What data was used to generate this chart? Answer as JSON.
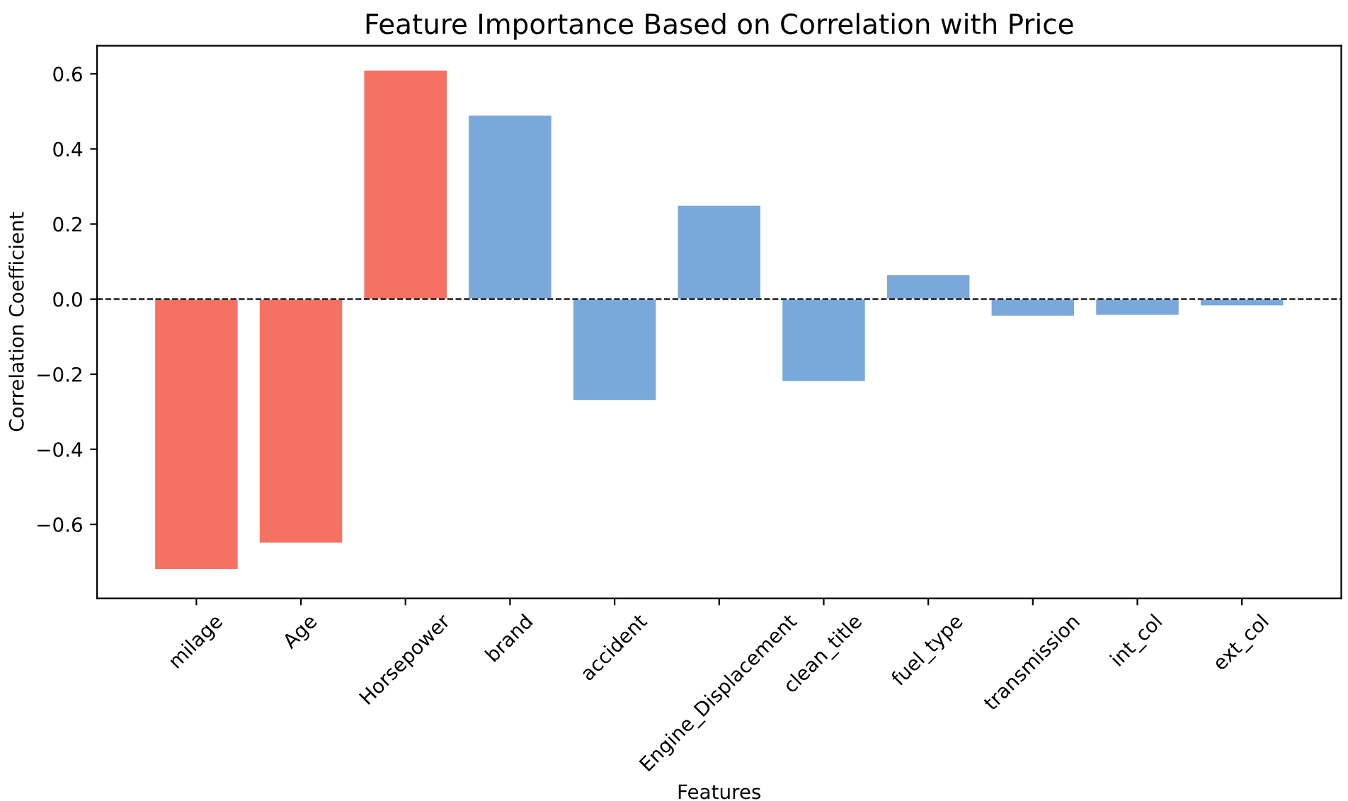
{
  "chart_data": {
    "type": "bar",
    "title": "Feature Importance Based on Correlation with Price",
    "xlabel": "Features",
    "ylabel": "Correlation Coefficient",
    "categories": [
      "milage",
      "Age",
      "Horsepower",
      "brand",
      "accident",
      "Engine_Displacement",
      "clean_title",
      "fuel_type",
      "transmission",
      "int_col",
      "ext_col"
    ],
    "values": [
      -0.72,
      -0.65,
      0.61,
      0.49,
      -0.27,
      0.25,
      -0.22,
      0.065,
      -0.046,
      -0.043,
      -0.018
    ],
    "colors": [
      "#f57262",
      "#f57262",
      "#f57262",
      "#7aa8db",
      "#7aa8db",
      "#7aa8db",
      "#7aa8db",
      "#7aa8db",
      "#7aa8db",
      "#7aa8db",
      "#7aa8db"
    ],
    "ylim": [
      -0.797,
      0.675
    ],
    "yticks": [
      {
        "value": -0.6,
        "label": "−0.6"
      },
      {
        "value": -0.4,
        "label": "−0.4"
      },
      {
        "value": -0.2,
        "label": "−0.2"
      },
      {
        "value": 0,
        "label": "0.0"
      },
      0.2,
      0.4,
      0.6
    ],
    "ref_lines": [
      {
        "axis": "y",
        "value": 0,
        "color": "#000000",
        "line_style": "dashed"
      }
    ],
    "grid": false
  }
}
